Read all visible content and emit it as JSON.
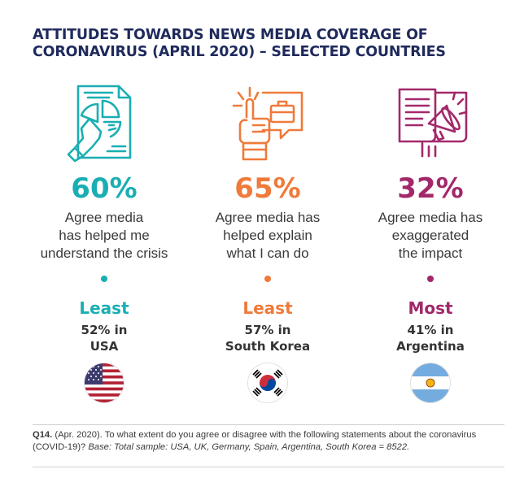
{
  "title": "ATTITUDES TOWARDS NEWS MEDIA COVERAGE OF CORONAVIRUS (APRIL 2020) – SELECTED COUNTRIES",
  "colors": {
    "teal": "#1aaeb3",
    "orange": "#ef7a3a",
    "magenta": "#a3286a",
    "navy": "#1f2a5c"
  },
  "columns": [
    {
      "icon": "pie-chart-hand-pointer-icon",
      "percent": "60%",
      "statement": [
        "Agree media",
        "has helped me",
        "understand the crisis"
      ],
      "rank": "Least",
      "detail": [
        "52% in",
        "USA"
      ],
      "flag": "usa-flag-icon"
    },
    {
      "icon": "hand-briefcase-speech-icon",
      "percent": "65%",
      "statement": [
        "Agree media has",
        "helped explain",
        "what I can do"
      ],
      "rank": "Least",
      "detail": [
        "57% in",
        "South Korea"
      ],
      "flag": "south-korea-flag-icon"
    },
    {
      "icon": "megaphone-document-icon",
      "percent": "32%",
      "statement": [
        "Agree media has",
        "exaggerated",
        "the impact"
      ],
      "rank": "Most",
      "detail": [
        "41% in",
        "Argentina"
      ],
      "flag": "argentina-flag-icon"
    }
  ],
  "footnote": {
    "label": "Q14.",
    "text": " (Apr. 2020). To what extent do you agree or disagree with the following statements about the coronavirus (COVID-19)? ",
    "base": "Base: Total sample: USA, UK, Germany, Spain, Argentina, South Korea = 8522."
  }
}
